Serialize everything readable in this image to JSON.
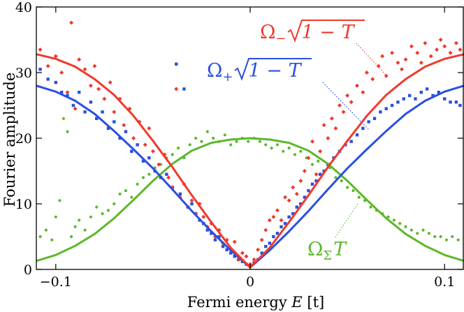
{
  "chart_data": {
    "type": "scatter",
    "xlabel": {
      "prefix": "Fermi energy ",
      "var": "E",
      "unit": "[t]"
    },
    "ylabel": "Fourier amplitude",
    "xlim": [
      -0.11,
      0.11
    ],
    "ylim": [
      0,
      40
    ],
    "xticks": [
      -0.1,
      0,
      0.1
    ],
    "xtick_labels": [
      "−0.1",
      "0",
      "0.1"
    ],
    "yticks": [
      0,
      10,
      20,
      30,
      40
    ],
    "ytick_labels": [
      "0",
      "10",
      "20",
      "30",
      "40"
    ],
    "grid": false,
    "legend": "none",
    "series": [
      {
        "key": "minus",
        "color": "#f0392b",
        "marker": "diamond",
        "annotation": {
          "symbol": "Ω",
          "sub": "−",
          "expr": "1 − T"
        },
        "curve": {
          "x": [
            -0.11,
            -0.1,
            -0.09,
            -0.08,
            -0.07,
            -0.06,
            -0.05,
            -0.04,
            -0.03,
            -0.02,
            -0.01,
            0,
            0.01,
            0.02,
            0.03,
            0.04,
            0.05,
            0.06,
            0.07,
            0.08,
            0.09,
            0.1,
            0.11
          ],
          "y": [
            32.8,
            32.1,
            30.9,
            29.0,
            26.6,
            23.4,
            19.6,
            15.6,
            11.3,
            7.2,
            3.3,
            0.3,
            3.3,
            7.2,
            11.3,
            15.6,
            19.6,
            23.4,
            26.6,
            29.0,
            30.9,
            32.1,
            32.8
          ]
        },
        "points": {
          "x": [
            -0.108,
            -0.104,
            -0.1,
            -0.097,
            -0.094,
            -0.092,
            -0.09,
            -0.088,
            -0.085,
            -0.082,
            -0.08,
            -0.078,
            -0.075,
            -0.072,
            -0.07,
            -0.067,
            -0.065,
            -0.062,
            -0.06,
            -0.057,
            -0.054,
            -0.052,
            -0.05,
            -0.047,
            -0.044,
            -0.042,
            -0.04,
            -0.038,
            -0.036,
            -0.034,
            -0.032,
            -0.03,
            -0.028,
            -0.026,
            -0.024,
            -0.022,
            -0.02,
            -0.018,
            -0.016,
            -0.014,
            -0.012,
            -0.01,
            -0.008,
            -0.006,
            -0.004,
            -0.002,
            0,
            0.002,
            0.004,
            0.006,
            0.008,
            0.01,
            0.012,
            0.014,
            0.016,
            0.018,
            0.02,
            0.022,
            0.024,
            0.026,
            0.028,
            0.03,
            0.032,
            0.034,
            0.036,
            0.038,
            0.04,
            0.042,
            0.044,
            0.046,
            0.048,
            0.05,
            0.052,
            0.055,
            0.058,
            0.06,
            0.063,
            0.066,
            0.068,
            0.07,
            0.073,
            0.076,
            0.078,
            0.08,
            0.083,
            0.086,
            0.088,
            0.09,
            0.093,
            0.096,
            0.098,
            0.1,
            0.103,
            0.106,
            0.108
          ],
          "y": [
            33.5,
            31.0,
            32.5,
            30.0,
            27.0,
            37.6,
            24.5,
            32.0,
            30.5,
            28.0,
            31.0,
            27.5,
            26.0,
            28.5,
            24.0,
            26.0,
            22.0,
            24.5,
            20.0,
            22.5,
            19.0,
            21.5,
            18.0,
            16.0,
            17.5,
            14.0,
            12.5,
            27.5,
            11.0,
            13.0,
            9.5,
            10.5,
            8.5,
            10.0,
            8.0,
            6.5,
            7.0,
            5.0,
            6.0,
            4.0,
            4.5,
            3.0,
            4.2,
            1.5,
            2.5,
            2.0,
            0.8,
            1.5,
            3.0,
            4.5,
            6.0,
            7.5,
            8.0,
            9.0,
            7.5,
            11.0,
            10.5,
            12.5,
            11.5,
            13.5,
            15.0,
            17.0,
            19.5,
            14.5,
            18.0,
            22.0,
            20.0,
            23.0,
            21.5,
            25.0,
            24.0,
            26.5,
            25.5,
            28.0,
            27.0,
            30.0,
            29.0,
            31.0,
            32.5,
            29.5,
            33.0,
            31.5,
            30.5,
            32.0,
            34.0,
            33.0,
            31.5,
            34.5,
            32.5,
            33.5,
            35.0,
            34.0,
            33.0,
            34.5,
            33.5
          ]
        }
      },
      {
        "key": "plus",
        "color": "#2b4fe0",
        "marker": "square",
        "annotation": {
          "symbol": "Ω",
          "sub": "+",
          "expr": "1 − T"
        },
        "curve": {
          "x": [
            -0.11,
            -0.1,
            -0.09,
            -0.08,
            -0.07,
            -0.06,
            -0.05,
            -0.04,
            -0.03,
            -0.02,
            -0.01,
            0,
            0.01,
            0.02,
            0.03,
            0.04,
            0.05,
            0.06,
            0.07,
            0.08,
            0.09,
            0.1,
            0.11
          ],
          "y": [
            28.0,
            27.1,
            25.7,
            23.7,
            21.1,
            18.3,
            15.4,
            12.2,
            8.9,
            5.8,
            2.9,
            0.3,
            2.9,
            5.8,
            8.9,
            12.2,
            15.4,
            18.3,
            21.1,
            23.7,
            25.7,
            27.1,
            28.0
          ]
        },
        "points": {
          "x": [
            -0.108,
            -0.104,
            -0.1,
            -0.097,
            -0.094,
            -0.091,
            -0.088,
            -0.085,
            -0.082,
            -0.079,
            -0.076,
            -0.073,
            -0.07,
            -0.067,
            -0.064,
            -0.061,
            -0.058,
            -0.055,
            -0.052,
            -0.049,
            -0.046,
            -0.043,
            -0.04,
            -0.038,
            -0.036,
            -0.034,
            -0.032,
            -0.03,
            -0.028,
            -0.026,
            -0.024,
            -0.022,
            -0.02,
            -0.018,
            -0.016,
            -0.014,
            -0.012,
            -0.01,
            -0.008,
            -0.006,
            -0.004,
            -0.002,
            0,
            0.002,
            0.004,
            0.006,
            0.008,
            0.01,
            0.012,
            0.014,
            0.016,
            0.018,
            0.02,
            0.022,
            0.024,
            0.026,
            0.028,
            0.03,
            0.032,
            0.034,
            0.036,
            0.038,
            0.04,
            0.043,
            0.046,
            0.049,
            0.052,
            0.055,
            0.058,
            0.061,
            0.064,
            0.067,
            0.07,
            0.073,
            0.076,
            0.079,
            0.082,
            0.085,
            0.088,
            0.091,
            0.094,
            0.097,
            0.1,
            0.103,
            0.106,
            0.108
          ],
          "y": [
            30.5,
            29.0,
            28.5,
            27.0,
            26.5,
            25.0,
            27.0,
            24.0,
            25.5,
            23.0,
            24.0,
            21.5,
            22.5,
            20.0,
            21.0,
            18.0,
            19.0,
            16.5,
            17.0,
            15.0,
            14.0,
            14.5,
            12.5,
            31.3,
            11.5,
            27.5,
            9.5,
            10.0,
            8.5,
            7.5,
            7.0,
            6.0,
            5.5,
            4.5,
            5.0,
            3.5,
            3.0,
            2.5,
            2.0,
            1.5,
            1.2,
            0.8,
            0.5,
            1.0,
            1.5,
            2.5,
            3.5,
            4.0,
            5.0,
            5.5,
            6.5,
            7.0,
            8.0,
            8.5,
            9.5,
            10.0,
            11.0,
            12.0,
            13.0,
            13.5,
            14.5,
            15.0,
            16.0,
            17.0,
            18.0,
            19.0,
            19.5,
            20.5,
            21.5,
            22.5,
            23.0,
            24.0,
            24.5,
            25.0,
            25.5,
            26.0,
            26.5,
            26.0,
            27.0,
            27.5,
            26.5,
            27.0,
            26.0,
            25.5,
            25.5,
            25.0
          ]
        }
      },
      {
        "key": "sigma",
        "color": "#5cb82a",
        "marker": "circle",
        "annotation": {
          "symbol": "Ω",
          "sub": "Σ",
          "expr": "T"
        },
        "curve": {
          "x": [
            -0.11,
            -0.1,
            -0.09,
            -0.08,
            -0.07,
            -0.06,
            -0.05,
            -0.04,
            -0.03,
            -0.02,
            -0.01,
            0,
            0.01,
            0.02,
            0.03,
            0.04,
            0.05,
            0.06,
            0.07,
            0.08,
            0.09,
            0.1,
            0.11
          ],
          "y": [
            1.3,
            2.2,
            3.6,
            5.4,
            7.8,
            10.6,
            13.5,
            16.1,
            18.1,
            19.3,
            19.8,
            20.0,
            19.8,
            19.3,
            18.1,
            16.1,
            13.5,
            10.6,
            7.8,
            5.4,
            3.6,
            2.2,
            1.3
          ]
        },
        "points": {
          "x": [
            -0.108,
            -0.105,
            -0.102,
            -0.1,
            -0.098,
            -0.096,
            -0.094,
            -0.092,
            -0.09,
            -0.088,
            -0.085,
            -0.082,
            -0.079,
            -0.076,
            -0.073,
            -0.07,
            -0.067,
            -0.064,
            -0.061,
            -0.058,
            -0.055,
            -0.052,
            -0.049,
            -0.046,
            -0.043,
            -0.04,
            -0.037,
            -0.034,
            -0.031,
            -0.028,
            -0.025,
            -0.022,
            -0.019,
            -0.016,
            -0.013,
            -0.01,
            -0.007,
            -0.004,
            -0.001,
            0.002,
            0.005,
            0.008,
            0.011,
            0.014,
            0.017,
            0.02,
            0.023,
            0.026,
            0.029,
            0.032,
            0.035,
            0.038,
            0.041,
            0.044,
            0.047,
            0.05,
            0.053,
            0.056,
            0.059,
            0.062,
            0.065,
            0.068,
            0.071,
            0.074,
            0.077,
            0.08,
            0.083,
            0.086,
            0.089,
            0.092,
            0.095,
            0.098,
            0.101,
            0.104,
            0.107
          ],
          "y": [
            5.0,
            6.0,
            4.5,
            8.0,
            10.5,
            23.0,
            21.0,
            5.0,
            6.5,
            7.5,
            6.0,
            8.0,
            9.5,
            8.5,
            9.0,
            10.0,
            11.5,
            12.0,
            11.0,
            13.0,
            14.0,
            14.5,
            15.5,
            16.0,
            17.0,
            17.5,
            18.5,
            17.0,
            19.0,
            20.0,
            19.5,
            21.0,
            20.0,
            19.5,
            20.5,
            19.0,
            19.5,
            20.0,
            19.5,
            20.0,
            19.5,
            19.0,
            18.5,
            19.0,
            18.0,
            18.5,
            17.5,
            18.0,
            17.0,
            16.0,
            16.5,
            15.0,
            15.5,
            14.0,
            13.5,
            12.5,
            12.0,
            11.0,
            10.5,
            9.5,
            9.0,
            8.5,
            8.0,
            7.5,
            7.0,
            6.5,
            6.0,
            5.5,
            6.0,
            5.5,
            5.0,
            5.0,
            4.5,
            5.0,
            4.5
          ]
        }
      }
    ]
  }
}
